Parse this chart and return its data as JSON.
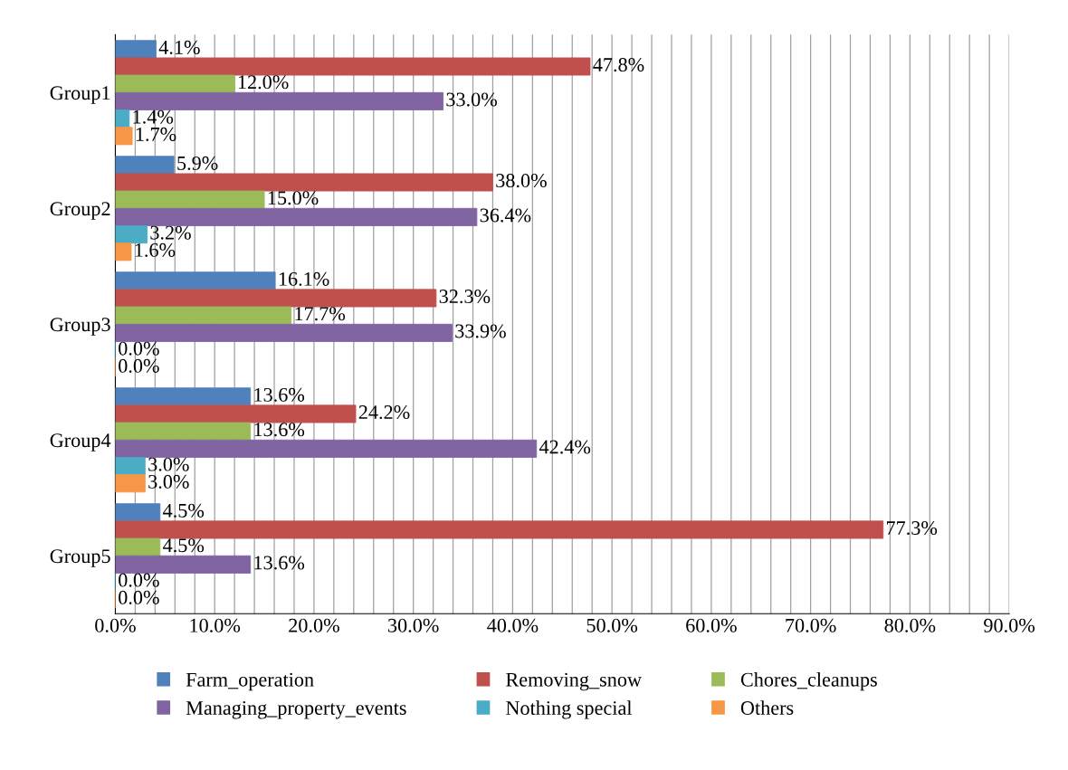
{
  "chart_data": {
    "type": "bar",
    "orientation": "horizontal",
    "categories": [
      "Group1",
      "Group2",
      "Group3",
      "Group4",
      "Group5"
    ],
    "series": [
      {
        "name": "Farm_operation",
        "color": "#4f81bd",
        "values": [
          4.1,
          5.9,
          16.1,
          13.6,
          4.5
        ],
        "value_labels": [
          "4.1%",
          "5.9%",
          "16.1%",
          "13.6%",
          "4.5%"
        ]
      },
      {
        "name": "Removing_snow",
        "color": "#c0504d",
        "values": [
          47.8,
          38.0,
          32.3,
          24.2,
          77.3
        ],
        "value_labels": [
          "47.8%",
          "38.0%",
          "32.3%",
          "24.2%",
          "77.3%"
        ]
      },
      {
        "name": "Chores_cleanups",
        "color": "#9bbb59",
        "values": [
          12.0,
          15.0,
          17.7,
          13.6,
          4.5
        ],
        "value_labels": [
          "12.0%",
          "15.0%",
          "17.7%",
          "13.6%",
          "4.5%"
        ]
      },
      {
        "name": "Managing_property_events",
        "color": "#8064a2",
        "values": [
          33.0,
          36.4,
          33.9,
          42.4,
          13.6
        ],
        "value_labels": [
          "33.0%",
          "36.4%",
          "33.9%",
          "42.4%",
          "13.6%"
        ]
      },
      {
        "name": "Nothing special",
        "color": "#4bacc6",
        "values": [
          1.4,
          3.2,
          0.0,
          3.0,
          0.0
        ],
        "value_labels": [
          "1.4%",
          "3.2%",
          "0.0%",
          "3.0%",
          "0.0%"
        ]
      },
      {
        "name": "Others",
        "color": "#f79646",
        "values": [
          1.7,
          1.6,
          0.0,
          3.0,
          0.0
        ],
        "value_labels": [
          "1.7%",
          "1.6%",
          "0.0%",
          "3.0%",
          "0.0%"
        ]
      }
    ],
    "xlim": [
      0,
      90
    ],
    "xticks": [
      {
        "value": 0,
        "label": "0.0%"
      },
      {
        "value": 2,
        "label": null
      },
      {
        "value": 4,
        "label": null
      },
      {
        "value": 6,
        "label": null
      },
      {
        "value": 8,
        "label": null
      },
      {
        "value": 10,
        "label": "10.0%"
      },
      {
        "value": 12,
        "label": null
      },
      {
        "value": 14,
        "label": null
      },
      {
        "value": 16,
        "label": null
      },
      {
        "value": 18,
        "label": null
      },
      {
        "value": 20,
        "label": "20.0%"
      },
      {
        "value": 22,
        "label": null
      },
      {
        "value": 24,
        "label": null
      },
      {
        "value": 26,
        "label": null
      },
      {
        "value": 28,
        "label": null
      },
      {
        "value": 30,
        "label": "30.0%"
      },
      {
        "value": 32,
        "label": null
      },
      {
        "value": 34,
        "label": null
      },
      {
        "value": 36,
        "label": null
      },
      {
        "value": 38,
        "label": null
      },
      {
        "value": 40,
        "label": "40.0%"
      },
      {
        "value": 42,
        "label": null
      },
      {
        "value": 44,
        "label": null
      },
      {
        "value": 46,
        "label": null
      },
      {
        "value": 48,
        "label": null
      },
      {
        "value": 50,
        "label": "50.0%"
      },
      {
        "value": 52,
        "label": null
      },
      {
        "value": 54,
        "label": null
      },
      {
        "value": 56,
        "label": null
      },
      {
        "value": 58,
        "label": null
      },
      {
        "value": 60,
        "label": "60.0%"
      },
      {
        "value": 62,
        "label": null
      },
      {
        "value": 64,
        "label": null
      },
      {
        "value": 66,
        "label": null
      },
      {
        "value": 68,
        "label": null
      },
      {
        "value": 70,
        "label": "70.0%"
      },
      {
        "value": 72,
        "label": null
      },
      {
        "value": 74,
        "label": null
      },
      {
        "value": 76,
        "label": null
      },
      {
        "value": 78,
        "label": null
      },
      {
        "value": 80,
        "label": "80.0%"
      },
      {
        "value": 82,
        "label": null
      },
      {
        "value": 84,
        "label": null
      },
      {
        "value": 86,
        "label": null
      },
      {
        "value": 88,
        "label": null
      },
      {
        "value": 90,
        "label": "90.0%"
      }
    ],
    "grid": "x",
    "legend": "bottom"
  }
}
